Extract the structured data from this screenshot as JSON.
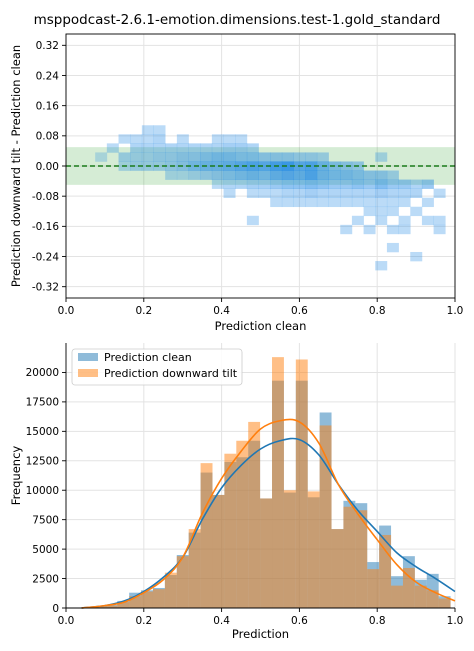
{
  "figure_title": "msppodcast-2.6.1-emotion.dimensions.test-1.gold_standard",
  "chart_data": [
    {
      "type": "heatmap",
      "xlabel": "Prediction clean",
      "ylabel": "Prediction downward tilt - Prediction clean",
      "xlim": [
        0.0,
        1.0
      ],
      "ylim": [
        -0.35,
        0.35
      ],
      "xticks": [
        "0.0",
        "0.2",
        "0.4",
        "0.6",
        "0.8",
        "1.0"
      ],
      "yticks": [
        "0.32",
        "0.24",
        "0.16",
        "0.08",
        "0.00",
        "-0.08",
        "-0.16",
        "-0.24",
        "-0.32"
      ],
      "grid": true,
      "reference_line": 0.0,
      "tolerance_band": [
        -0.05,
        0.05
      ],
      "colors": {
        "cell": "#1e88e5",
        "band": "#2ca02c",
        "ref_line": "#1a7a1a"
      },
      "cells": [
        {
          "x": 0.09,
          "y": 0.024,
          "d": 0.25
        },
        {
          "x": 0.12,
          "y": 0.048,
          "d": 0.3
        },
        {
          "x": 0.15,
          "y": 0.072,
          "d": 0.3
        },
        {
          "x": 0.15,
          "y": 0.024,
          "d": 0.35
        },
        {
          "x": 0.15,
          "y": 0.0,
          "d": 0.3
        },
        {
          "x": 0.18,
          "y": 0.072,
          "d": 0.3
        },
        {
          "x": 0.18,
          "y": 0.048,
          "d": 0.35
        },
        {
          "x": 0.18,
          "y": 0.024,
          "d": 0.35
        },
        {
          "x": 0.18,
          "y": 0.0,
          "d": 0.35
        },
        {
          "x": 0.21,
          "y": 0.096,
          "d": 0.3
        },
        {
          "x": 0.21,
          "y": 0.072,
          "d": 0.3
        },
        {
          "x": 0.21,
          "y": 0.048,
          "d": 0.35
        },
        {
          "x": 0.21,
          "y": 0.024,
          "d": 0.35
        },
        {
          "x": 0.21,
          "y": 0.0,
          "d": 0.35
        },
        {
          "x": 0.24,
          "y": 0.096,
          "d": 0.3
        },
        {
          "x": 0.24,
          "y": 0.072,
          "d": 0.35
        },
        {
          "x": 0.24,
          "y": 0.048,
          "d": 0.35
        },
        {
          "x": 0.24,
          "y": 0.024,
          "d": 0.4
        },
        {
          "x": 0.24,
          "y": 0.0,
          "d": 0.35
        },
        {
          "x": 0.27,
          "y": 0.048,
          "d": 0.35
        },
        {
          "x": 0.27,
          "y": 0.024,
          "d": 0.4
        },
        {
          "x": 0.27,
          "y": 0.0,
          "d": 0.4
        },
        {
          "x": 0.27,
          "y": -0.024,
          "d": 0.3
        },
        {
          "x": 0.3,
          "y": 0.072,
          "d": 0.3
        },
        {
          "x": 0.3,
          "y": 0.048,
          "d": 0.35
        },
        {
          "x": 0.3,
          "y": 0.024,
          "d": 0.45
        },
        {
          "x": 0.3,
          "y": 0.0,
          "d": 0.45
        },
        {
          "x": 0.3,
          "y": -0.024,
          "d": 0.3
        },
        {
          "x": 0.33,
          "y": 0.048,
          "d": 0.35
        },
        {
          "x": 0.33,
          "y": 0.024,
          "d": 0.45
        },
        {
          "x": 0.33,
          "y": 0.0,
          "d": 0.55
        },
        {
          "x": 0.33,
          "y": -0.024,
          "d": 0.35
        },
        {
          "x": 0.36,
          "y": 0.048,
          "d": 0.35
        },
        {
          "x": 0.36,
          "y": 0.024,
          "d": 0.5
        },
        {
          "x": 0.36,
          "y": 0.0,
          "d": 0.6
        },
        {
          "x": 0.36,
          "y": -0.024,
          "d": 0.4
        },
        {
          "x": 0.39,
          "y": 0.072,
          "d": 0.3
        },
        {
          "x": 0.39,
          "y": 0.048,
          "d": 0.35
        },
        {
          "x": 0.39,
          "y": 0.024,
          "d": 0.55
        },
        {
          "x": 0.39,
          "y": 0.0,
          "d": 0.6
        },
        {
          "x": 0.39,
          "y": -0.024,
          "d": 0.45
        },
        {
          "x": 0.39,
          "y": -0.048,
          "d": 0.3
        },
        {
          "x": 0.42,
          "y": 0.072,
          "d": 0.3
        },
        {
          "x": 0.42,
          "y": 0.048,
          "d": 0.4
        },
        {
          "x": 0.42,
          "y": 0.024,
          "d": 0.55
        },
        {
          "x": 0.42,
          "y": 0.0,
          "d": 0.65
        },
        {
          "x": 0.42,
          "y": -0.024,
          "d": 0.5
        },
        {
          "x": 0.42,
          "y": -0.048,
          "d": 0.35
        },
        {
          "x": 0.42,
          "y": -0.072,
          "d": 0.3
        },
        {
          "x": 0.45,
          "y": 0.072,
          "d": 0.3
        },
        {
          "x": 0.45,
          "y": 0.048,
          "d": 0.4
        },
        {
          "x": 0.45,
          "y": 0.024,
          "d": 0.5
        },
        {
          "x": 0.45,
          "y": 0.0,
          "d": 0.7
        },
        {
          "x": 0.45,
          "y": -0.024,
          "d": 0.55
        },
        {
          "x": 0.45,
          "y": -0.048,
          "d": 0.35
        },
        {
          "x": 0.48,
          "y": 0.048,
          "d": 0.35
        },
        {
          "x": 0.48,
          "y": 0.024,
          "d": 0.5
        },
        {
          "x": 0.48,
          "y": 0.0,
          "d": 0.75
        },
        {
          "x": 0.48,
          "y": -0.024,
          "d": 0.6
        },
        {
          "x": 0.48,
          "y": -0.048,
          "d": 0.4
        },
        {
          "x": 0.48,
          "y": -0.072,
          "d": 0.3
        },
        {
          "x": 0.48,
          "y": -0.144,
          "d": 0.3
        },
        {
          "x": 0.51,
          "y": 0.024,
          "d": 0.45
        },
        {
          "x": 0.51,
          "y": 0.0,
          "d": 0.7
        },
        {
          "x": 0.51,
          "y": -0.024,
          "d": 0.55
        },
        {
          "x": 0.51,
          "y": -0.048,
          "d": 0.4
        },
        {
          "x": 0.51,
          "y": -0.072,
          "d": 0.3
        },
        {
          "x": 0.54,
          "y": 0.024,
          "d": 0.45
        },
        {
          "x": 0.54,
          "y": 0.0,
          "d": 0.8
        },
        {
          "x": 0.54,
          "y": -0.024,
          "d": 0.65
        },
        {
          "x": 0.54,
          "y": -0.048,
          "d": 0.45
        },
        {
          "x": 0.54,
          "y": -0.072,
          "d": 0.3
        },
        {
          "x": 0.54,
          "y": -0.096,
          "d": 0.3
        },
        {
          "x": 0.57,
          "y": 0.024,
          "d": 0.45
        },
        {
          "x": 0.57,
          "y": 0.0,
          "d": 0.85
        },
        {
          "x": 0.57,
          "y": -0.024,
          "d": 0.7
        },
        {
          "x": 0.57,
          "y": -0.048,
          "d": 0.5
        },
        {
          "x": 0.57,
          "y": -0.072,
          "d": 0.35
        },
        {
          "x": 0.57,
          "y": -0.096,
          "d": 0.3
        },
        {
          "x": 0.6,
          "y": 0.024,
          "d": 0.4
        },
        {
          "x": 0.6,
          "y": 0.0,
          "d": 0.7
        },
        {
          "x": 0.6,
          "y": -0.024,
          "d": 0.65
        },
        {
          "x": 0.6,
          "y": -0.048,
          "d": 0.5
        },
        {
          "x": 0.6,
          "y": -0.072,
          "d": 0.35
        },
        {
          "x": 0.6,
          "y": -0.096,
          "d": 0.3
        },
        {
          "x": 0.63,
          "y": 0.024,
          "d": 0.4
        },
        {
          "x": 0.63,
          "y": 0.0,
          "d": 0.75
        },
        {
          "x": 0.63,
          "y": -0.024,
          "d": 0.75
        },
        {
          "x": 0.63,
          "y": -0.048,
          "d": 0.55
        },
        {
          "x": 0.63,
          "y": -0.072,
          "d": 0.4
        },
        {
          "x": 0.63,
          "y": -0.096,
          "d": 0.3
        },
        {
          "x": 0.66,
          "y": 0.024,
          "d": 0.35
        },
        {
          "x": 0.66,
          "y": 0.0,
          "d": 0.6
        },
        {
          "x": 0.66,
          "y": -0.024,
          "d": 0.6
        },
        {
          "x": 0.66,
          "y": -0.048,
          "d": 0.5
        },
        {
          "x": 0.66,
          "y": -0.072,
          "d": 0.35
        },
        {
          "x": 0.66,
          "y": -0.096,
          "d": 0.3
        },
        {
          "x": 0.69,
          "y": 0.0,
          "d": 0.5
        },
        {
          "x": 0.69,
          "y": -0.024,
          "d": 0.55
        },
        {
          "x": 0.69,
          "y": -0.048,
          "d": 0.45
        },
        {
          "x": 0.69,
          "y": -0.072,
          "d": 0.35
        },
        {
          "x": 0.69,
          "y": -0.096,
          "d": 0.3
        },
        {
          "x": 0.72,
          "y": 0.0,
          "d": 0.45
        },
        {
          "x": 0.72,
          "y": -0.024,
          "d": 0.55
        },
        {
          "x": 0.72,
          "y": -0.048,
          "d": 0.45
        },
        {
          "x": 0.72,
          "y": -0.072,
          "d": 0.35
        },
        {
          "x": 0.72,
          "y": -0.096,
          "d": 0.3
        },
        {
          "x": 0.72,
          "y": -0.168,
          "d": 0.3
        },
        {
          "x": 0.75,
          "y": 0.0,
          "d": 0.4
        },
        {
          "x": 0.75,
          "y": -0.024,
          "d": 0.5
        },
        {
          "x": 0.75,
          "y": -0.048,
          "d": 0.5
        },
        {
          "x": 0.75,
          "y": -0.072,
          "d": 0.35
        },
        {
          "x": 0.75,
          "y": -0.096,
          "d": 0.3
        },
        {
          "x": 0.75,
          "y": -0.144,
          "d": 0.3
        },
        {
          "x": 0.78,
          "y": -0.024,
          "d": 0.45
        },
        {
          "x": 0.78,
          "y": -0.048,
          "d": 0.45
        },
        {
          "x": 0.78,
          "y": -0.072,
          "d": 0.35
        },
        {
          "x": 0.78,
          "y": -0.096,
          "d": 0.3
        },
        {
          "x": 0.78,
          "y": -0.12,
          "d": 0.3
        },
        {
          "x": 0.78,
          "y": -0.168,
          "d": 0.3
        },
        {
          "x": 0.81,
          "y": 0.024,
          "d": 0.3
        },
        {
          "x": 0.81,
          "y": -0.024,
          "d": 0.45
        },
        {
          "x": 0.81,
          "y": -0.048,
          "d": 0.55
        },
        {
          "x": 0.81,
          "y": -0.072,
          "d": 0.4
        },
        {
          "x": 0.81,
          "y": -0.096,
          "d": 0.3
        },
        {
          "x": 0.81,
          "y": -0.12,
          "d": 0.3
        },
        {
          "x": 0.81,
          "y": -0.144,
          "d": 0.3
        },
        {
          "x": 0.81,
          "y": -0.264,
          "d": 0.3
        },
        {
          "x": 0.84,
          "y": -0.024,
          "d": 0.35
        },
        {
          "x": 0.84,
          "y": -0.048,
          "d": 0.45
        },
        {
          "x": 0.84,
          "y": -0.072,
          "d": 0.35
        },
        {
          "x": 0.84,
          "y": -0.096,
          "d": 0.3
        },
        {
          "x": 0.84,
          "y": -0.12,
          "d": 0.3
        },
        {
          "x": 0.84,
          "y": -0.168,
          "d": 0.3
        },
        {
          "x": 0.84,
          "y": -0.216,
          "d": 0.3
        },
        {
          "x": 0.87,
          "y": -0.048,
          "d": 0.45
        },
        {
          "x": 0.87,
          "y": -0.072,
          "d": 0.35
        },
        {
          "x": 0.87,
          "y": -0.096,
          "d": 0.3
        },
        {
          "x": 0.87,
          "y": -0.144,
          "d": 0.3
        },
        {
          "x": 0.87,
          "y": -0.168,
          "d": 0.3
        },
        {
          "x": 0.9,
          "y": -0.048,
          "d": 0.35
        },
        {
          "x": 0.9,
          "y": -0.072,
          "d": 0.35
        },
        {
          "x": 0.9,
          "y": -0.12,
          "d": 0.3
        },
        {
          "x": 0.9,
          "y": -0.24,
          "d": 0.3
        },
        {
          "x": 0.93,
          "y": -0.048,
          "d": 0.45
        },
        {
          "x": 0.93,
          "y": -0.096,
          "d": 0.3
        },
        {
          "x": 0.93,
          "y": -0.144,
          "d": 0.3
        },
        {
          "x": 0.96,
          "y": -0.072,
          "d": 0.3
        },
        {
          "x": 0.96,
          "y": -0.144,
          "d": 0.3
        },
        {
          "x": 0.96,
          "y": -0.168,
          "d": 0.3
        }
      ]
    },
    {
      "type": "bar",
      "xlabel": "Prediction",
      "ylabel": "Frequency",
      "xlim": [
        0.0,
        1.0
      ],
      "ylim": [
        0,
        22500
      ],
      "xticks": [
        "0.0",
        "0.2",
        "0.4",
        "0.6",
        "0.8",
        "1.0"
      ],
      "yticks": [
        "0",
        "2500",
        "5000",
        "7500",
        "10000",
        "12500",
        "15000",
        "17500",
        "20000"
      ],
      "grid": true,
      "legend_position": "upper-left",
      "bin_width": 0.0306,
      "bin_start": 0.04,
      "series": [
        {
          "name": "Prediction clean",
          "color": "#1f77b4",
          "values": [
            80,
            150,
            250,
            600,
            1300,
            1500,
            1700,
            2800,
            4500,
            6400,
            11500,
            9600,
            12400,
            12800,
            14200,
            9300,
            19300,
            9800,
            19300,
            9400,
            16600,
            6700,
            9100,
            8900,
            3900,
            7000,
            2700,
            4400,
            2400,
            2900,
            1000
          ]
        },
        {
          "name": "Prediction downward tilt",
          "color": "#ff7f0e",
          "values": [
            60,
            120,
            200,
            500,
            1000,
            1400,
            1600,
            3000,
            4400,
            6700,
            12300,
            9600,
            13100,
            14200,
            15800,
            9300,
            21300,
            10000,
            21100,
            9900,
            15500,
            6700,
            8600,
            8300,
            3300,
            6200,
            1900,
            3400,
            1900,
            1500,
            800
          ]
        }
      ],
      "kde": [
        {
          "name": "Prediction clean",
          "color": "#1f77b4",
          "x": [
            0.04,
            0.1,
            0.15,
            0.2,
            0.25,
            0.3,
            0.35,
            0.4,
            0.45,
            0.5,
            0.55,
            0.6,
            0.65,
            0.7,
            0.75,
            0.8,
            0.85,
            0.9,
            0.95,
            1.0
          ],
          "y": [
            0,
            200,
            600,
            1400,
            2600,
            4300,
            7500,
            10200,
            12100,
            13500,
            14200,
            14300,
            13000,
            10500,
            8300,
            6500,
            4700,
            3500,
            2500,
            1400
          ]
        },
        {
          "name": "Prediction downward tilt",
          "color": "#ff7f0e",
          "x": [
            0.04,
            0.1,
            0.15,
            0.2,
            0.25,
            0.3,
            0.35,
            0.4,
            0.45,
            0.5,
            0.55,
            0.6,
            0.65,
            0.7,
            0.75,
            0.8,
            0.85,
            0.9,
            0.95,
            1.0
          ],
          "y": [
            0,
            200,
            500,
            1300,
            2400,
            4300,
            8000,
            11000,
            13300,
            15200,
            15900,
            15800,
            14000,
            10500,
            8000,
            5800,
            3700,
            2200,
            1300,
            600
          ]
        }
      ]
    }
  ]
}
